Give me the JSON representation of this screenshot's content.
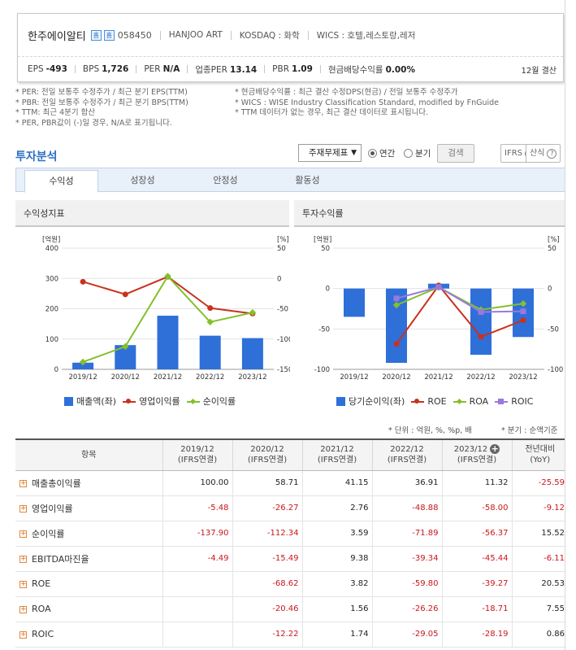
{
  "company": {
    "name": "한주에이알티",
    "icon1": "홈",
    "icon2": "홈",
    "code": "058450",
    "eng_name": "HANJOO ART",
    "market": "KOSDAQ : 화학",
    "wics": "WICS : 호텔,레스토랑,레저",
    "metrics": [
      {
        "label": "EPS",
        "value": "-493"
      },
      {
        "label": "BPS",
        "value": "1,726"
      },
      {
        "label": "PER",
        "value": "N/A"
      },
      {
        "label": "업종PER",
        "value": "13.14"
      },
      {
        "label": "PBR",
        "value": "1.09"
      },
      {
        "label": "현금배당수익률",
        "value": "0.00%"
      }
    ],
    "fiscal_year_end": "12월 결산"
  },
  "notes_left": [
    "* PER: 전일 보통주 수정주가 / 최근 분기 EPS(TTM)",
    "* PBR: 전일 보통주 수정주가 / 최근 분기 BPS(TTM)",
    "* TTM: 최근 4분기 합산",
    "* PER, PBR값이 (-)일 경우, N/A로 표기됩니다."
  ],
  "notes_right": [
    "* 현금배당수익률 : 최근 결산 수정DPS(현금) / 전일 보통주 수정주가",
    "* WICS : WISE Industry Classification Standard, modified by FnGuide",
    "* TTM 데이터가 없는 경우, 최근 결산 데이터로 표시됩니다."
  ],
  "section": {
    "title": "투자분석",
    "select_value": "주재무제표",
    "radio_annual": "연간",
    "radio_quarter": "분기",
    "search_button": "검색",
    "ifrs_button": "IFRS",
    "formula_button": "산식"
  },
  "tabs": [
    "수익성",
    "성장성",
    "안정성",
    "활동성"
  ],
  "active_tab": 0,
  "panels": {
    "left_title": "수익성지표",
    "right_title": "투자수익률"
  },
  "chart_data": [
    {
      "type": "bar+line",
      "title": "수익성지표",
      "categories": [
        "2019/12",
        "2020/12",
        "2021/12",
        "2022/12",
        "2023/12"
      ],
      "left_axis": {
        "label": "[억원]",
        "ticks": [
          "400",
          "300",
          "200",
          "100",
          "0"
        ],
        "range": [
          0,
          400
        ]
      },
      "right_axis": {
        "label": "[%]",
        "ticks": [
          "50",
          "0",
          "-50",
          "-100",
          "-150"
        ],
        "range": [
          -150,
          50
        ]
      },
      "bars": {
        "name": "매출액(좌)",
        "color": "#2f6fd8",
        "values": [
          22,
          80,
          177,
          111,
          103
        ]
      },
      "series": [
        {
          "name": "영업이익률",
          "color": "#c8321e",
          "marker": "circle",
          "values": [
            -5.48,
            -26.27,
            2.76,
            -48.88,
            -58.0
          ]
        },
        {
          "name": "순이익률",
          "color": "#84c02c",
          "marker": "diamond",
          "values": [
            -137.9,
            -112.34,
            3.59,
            -71.89,
            -56.37
          ]
        }
      ],
      "grid": true,
      "legend": "bottom"
    },
    {
      "type": "bar+line",
      "title": "투자수익률",
      "categories": [
        "2019/12",
        "2020/12",
        "2021/12",
        "2022/12",
        "2023/12"
      ],
      "left_axis": {
        "label": "[억원]",
        "ticks": [
          "50",
          "0",
          "-50",
          "-100"
        ],
        "range": [
          -100,
          50
        ]
      },
      "right_axis": {
        "label": "[%]",
        "ticks": [
          "50",
          "0",
          "-50",
          "-100"
        ],
        "range": [
          -100,
          50
        ]
      },
      "bars": {
        "name": "당기순이익(좌)",
        "color": "#2f6fd8",
        "values": [
          -35,
          -92,
          6,
          -82,
          -60
        ]
      },
      "series": [
        {
          "name": "ROE",
          "color": "#c8321e",
          "marker": "circle",
          "values": [
            null,
            -68.62,
            3.82,
            -59.8,
            -39.27
          ]
        },
        {
          "name": "ROA",
          "color": "#84c02c",
          "marker": "diamond",
          "values": [
            null,
            -20.46,
            1.56,
            -26.26,
            -18.71
          ]
        },
        {
          "name": "ROIC",
          "color": "#9a78e0",
          "marker": "square",
          "values": [
            null,
            -12.22,
            1.74,
            -29.05,
            -28.19
          ]
        }
      ],
      "grid": true,
      "legend": "bottom"
    }
  ],
  "unit_note": "* 단위 : 억원, %, %p, 배",
  "quarter_note": "* 분기 : 순액기준",
  "table": {
    "header_item": "항목",
    "columns": [
      {
        "year": "2019/12",
        "sub": "(IFRS연결)"
      },
      {
        "year": "2020/12",
        "sub": "(IFRS연결)"
      },
      {
        "year": "2021/12",
        "sub": "(IFRS연결)"
      },
      {
        "year": "2022/12",
        "sub": "(IFRS연결)"
      },
      {
        "year": "2023/12",
        "sub": "(IFRS연결)"
      }
    ],
    "yoy_header": "전년대비",
    "yoy_sub": "(YoY)",
    "rows": [
      {
        "name": "매출총이익률",
        "values": [
          "100.00",
          "58.71",
          "41.15",
          "36.91",
          "11.32",
          "-25.59"
        ]
      },
      {
        "name": "영업이익률",
        "values": [
          "-5.48",
          "-26.27",
          "2.76",
          "-48.88",
          "-58.00",
          "-9.12"
        ]
      },
      {
        "name": "순이익률",
        "values": [
          "-137.90",
          "-112.34",
          "3.59",
          "-71.89",
          "-56.37",
          "15.52"
        ]
      },
      {
        "name": "EBITDA마진율",
        "values": [
          "-4.49",
          "-15.49",
          "9.38",
          "-39.34",
          "-45.44",
          "-6.11"
        ]
      },
      {
        "name": "ROE",
        "values": [
          "",
          "-68.62",
          "3.82",
          "-59.80",
          "-39.27",
          "20.53"
        ]
      },
      {
        "name": "ROA",
        "values": [
          "",
          "-20.46",
          "1.56",
          "-26.26",
          "-18.71",
          "7.55"
        ]
      },
      {
        "name": "ROIC",
        "values": [
          "",
          "-12.22",
          "1.74",
          "-29.05",
          "-28.19",
          "0.86"
        ]
      }
    ]
  }
}
